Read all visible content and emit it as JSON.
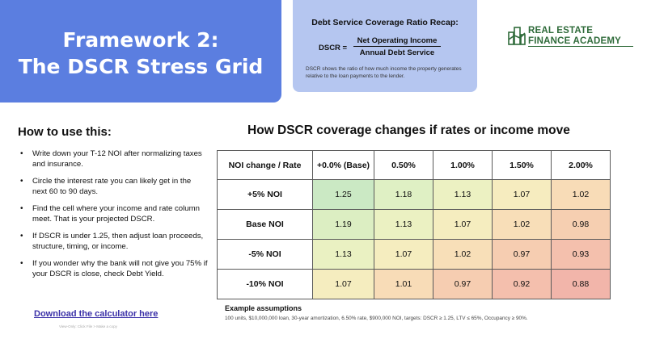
{
  "title": {
    "line1": "Framework 2:",
    "line2": "The DSCR Stress Grid"
  },
  "recap": {
    "heading": "Debt Service Coverage Ratio Recap:",
    "lhs": "DSCR =",
    "numerator": "Net Operating Income",
    "denominator": "Annual Debt Service",
    "note": "DSCR shows the ratio of how much income the property generates relative to the loan payments to the lender."
  },
  "logo": {
    "line1": "REAL ESTATE",
    "line2": "FINANCE ACADEMY",
    "icon": "building-logo-icon",
    "color": "#2f6b3a"
  },
  "howto": {
    "title": "How to use this:",
    "steps": [
      "Write down your T-12 NOI after normalizing taxes and insurance.",
      "Circle the interest rate you can likely get in the next 60 to 90 days.",
      "Find the cell where your income and rate column meet. That is your projected DSCR.",
      "If DSCR is under 1.25, then adjust loan proceeds, structure, timing, or income.",
      "If you wonder why the bank will not give you 75% if your DSCR is close, check Debt Yield."
    ],
    "download_label": "Download the calculator here",
    "download_sub": "View-Only: Click File > Make a copy"
  },
  "grid": {
    "title": "How DSCR coverage changes if rates or income move",
    "corner": "NOI change / Rate",
    "columns": [
      "+0.0% (Base)",
      "0.50%",
      "1.00%",
      "1.50%",
      "2.00%"
    ],
    "rows": [
      {
        "label": "+5% NOI",
        "values": [
          "1.25",
          "1.18",
          "1.13",
          "1.07",
          "1.02"
        ],
        "colors": [
          "#cbe9c4",
          "#dff0c4",
          "#ecf1c2",
          "#f6ecbf",
          "#f8dcb7"
        ]
      },
      {
        "label": "Base NOI",
        "values": [
          "1.19",
          "1.13",
          "1.07",
          "1.02",
          "0.98"
        ],
        "colors": [
          "#dceec2",
          "#ebf1c2",
          "#f5edbf",
          "#f8deb8",
          "#f6cfb1"
        ]
      },
      {
        "label": "-5% NOI",
        "values": [
          "1.13",
          "1.07",
          "1.02",
          "0.97",
          "0.93"
        ],
        "colors": [
          "#eaf1c2",
          "#f5edbf",
          "#f8dfb8",
          "#f6cdb1",
          "#f4c0ad"
        ]
      },
      {
        "label": "-10% NOI",
        "values": [
          "1.07",
          "1.01",
          "0.97",
          "0.92",
          "0.88"
        ],
        "colors": [
          "#f5edbf",
          "#f8dcb7",
          "#f6cdb1",
          "#f4bfad",
          "#f2b5aa"
        ]
      }
    ]
  },
  "assumptions": {
    "heading": "Example assumptions",
    "text": "100 units, $10,000,000 loan, 30-year amortization, 6.50% rate, $900,000 NOI, targets: DSCR ≥ 1.25, LTV ≤ 65%, Occupancy ≥ 90%."
  },
  "colors": {
    "title_panel": "#5b7ee0",
    "recap_panel": "#b5c6f0",
    "link": "#3b31a8"
  }
}
